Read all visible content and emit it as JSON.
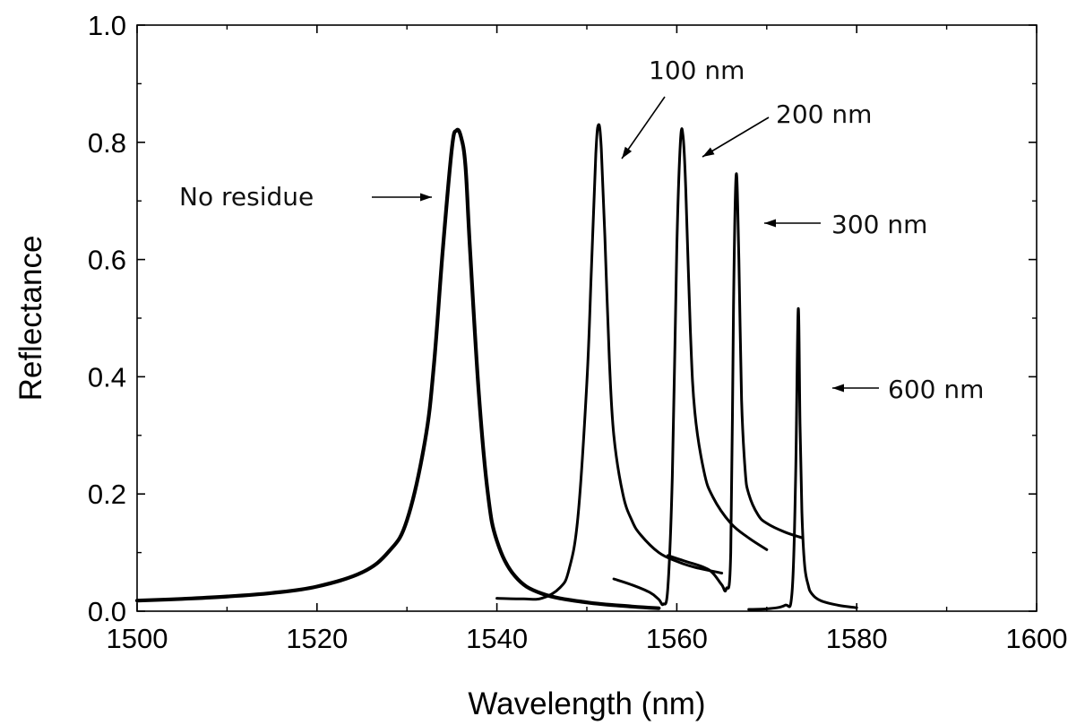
{
  "chart_data": {
    "type": "line",
    "title": "",
    "xlabel": "Wavelength (nm)",
    "ylabel": "Reflectance",
    "xlim": [
      1500,
      1600
    ],
    "ylim": [
      0.0,
      1.0
    ],
    "x_ticks": [
      "1500",
      "1520",
      "1540",
      "1560",
      "1580",
      "1600"
    ],
    "y_ticks": [
      "0.0",
      "0.2",
      "0.4",
      "0.6",
      "0.8",
      "1.0"
    ],
    "grid": false,
    "legend": "none",
    "series": [
      {
        "name": "No residue",
        "x": [
          1500,
          1505,
          1510,
          1515,
          1520,
          1525,
          1528,
          1530,
          1532,
          1533,
          1534,
          1535,
          1535.5,
          1536,
          1536.5,
          1537,
          1538,
          1539,
          1540,
          1542,
          1545,
          1550,
          1555,
          1558
        ],
        "y": [
          0.018,
          0.021,
          0.025,
          0.031,
          0.042,
          0.066,
          0.102,
          0.155,
          0.29,
          0.42,
          0.62,
          0.79,
          0.82,
          0.81,
          0.76,
          0.62,
          0.37,
          0.2,
          0.12,
          0.06,
          0.03,
          0.015,
          0.008,
          0.005
        ]
      },
      {
        "name": "100 nm",
        "x": [
          1540,
          1543,
          1545,
          1547,
          1548,
          1549,
          1550,
          1550.5,
          1551,
          1551.3,
          1551.6,
          1552,
          1552.5,
          1553,
          1554,
          1555,
          1556,
          1558,
          1560,
          1562,
          1565
        ],
        "y": [
          0.022,
          0.021,
          0.022,
          0.04,
          0.07,
          0.16,
          0.39,
          0.58,
          0.78,
          0.83,
          0.79,
          0.64,
          0.43,
          0.3,
          0.2,
          0.155,
          0.13,
          0.1,
          0.085,
          0.075,
          0.065
        ]
      },
      {
        "name": "200 nm",
        "x": [
          1553,
          1555,
          1557,
          1558,
          1558.5,
          1559,
          1559.5,
          1560,
          1560.4,
          1560.7,
          1561,
          1561.5,
          1562,
          1563,
          1564,
          1566,
          1568,
          1570
        ],
        "y": [
          0.055,
          0.045,
          0.032,
          0.02,
          0.012,
          0.04,
          0.23,
          0.62,
          0.8,
          0.81,
          0.72,
          0.48,
          0.34,
          0.24,
          0.195,
          0.15,
          0.125,
          0.105
        ]
      },
      {
        "name": "300 nm",
        "x": [
          1559,
          1561,
          1563,
          1564,
          1565,
          1565.5,
          1566,
          1566.3,
          1566.6,
          1566.9,
          1567.2,
          1567.6,
          1568,
          1569,
          1570,
          1572,
          1574
        ],
        "y": [
          0.095,
          0.085,
          0.075,
          0.065,
          0.045,
          0.038,
          0.1,
          0.52,
          0.745,
          0.6,
          0.36,
          0.24,
          0.2,
          0.165,
          0.15,
          0.135,
          0.125
        ]
      },
      {
        "name": "600 nm",
        "x": [
          1568,
          1570,
          1572,
          1572.8,
          1573.2,
          1573.5,
          1573.7,
          1573.9,
          1574.2,
          1574.6,
          1575,
          1576,
          1578,
          1580
        ],
        "y": [
          0.003,
          0.004,
          0.01,
          0.03,
          0.22,
          0.515,
          0.32,
          0.17,
          0.08,
          0.045,
          0.03,
          0.018,
          0.01,
          0.006
        ]
      }
    ],
    "annotations": [
      {
        "text": "No residue",
        "target": [
          1536,
          0.7
        ]
      },
      {
        "text": "100 nm",
        "target": [
          1552.5,
          0.76
        ]
      },
      {
        "text": "200 nm",
        "target": [
          1561.5,
          0.77
        ]
      },
      {
        "text": "300 nm",
        "target": [
          1567.5,
          0.66
        ]
      },
      {
        "text": "600 nm",
        "target": [
          1574.5,
          0.38
        ]
      }
    ]
  }
}
